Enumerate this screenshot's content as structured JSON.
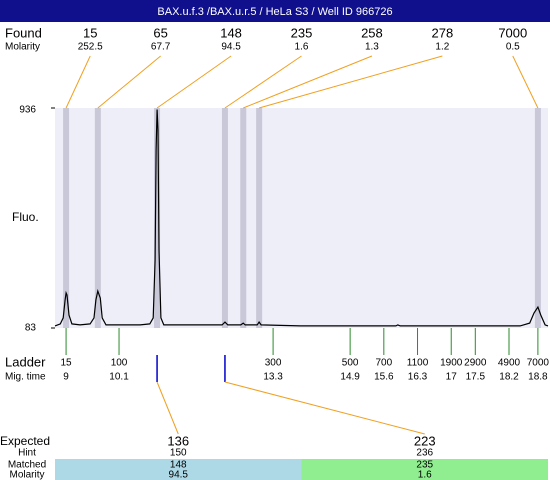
{
  "chart_data": {
    "type": "electropherogram",
    "title": "BAX.u.f.3 /BAX.u.r.5 / HeLa S3 / Well ID 966726",
    "ylabel": "Fluo.",
    "ylim": [
      83,
      936
    ],
    "yticks": [
      83,
      936
    ],
    "xlim": [
      8.77,
      19.01
    ],
    "trace_color": "#000000",
    "x": [
      8.77,
      8.88,
      8.94,
      8.98,
      9.0,
      9.02,
      9.06,
      9.12,
      9.29,
      9.5,
      9.58,
      9.62,
      9.66,
      9.71,
      9.75,
      9.83,
      10.54,
      10.74,
      10.81,
      10.85,
      10.87,
      10.89,
      10.91,
      10.93,
      10.97,
      11.03,
      12.24,
      12.3,
      12.36,
      12.63,
      12.68,
      12.72,
      12.97,
      13.01,
      13.05,
      13.86,
      15.85,
      15.89,
      15.94,
      18.43,
      18.63,
      18.72,
      18.8,
      18.86,
      18.95,
      19.01
    ],
    "values": [
      91,
      99,
      122,
      192,
      219,
      211,
      133,
      99,
      95,
      99,
      122,
      192,
      226,
      199,
      122,
      95,
      95,
      99,
      122,
      347,
      773,
      930,
      851,
      385,
      122,
      95,
      95,
      106,
      95,
      95,
      102,
      95,
      95,
      106,
      95,
      91,
      91,
      95,
      91,
      91,
      102,
      141,
      164,
      133,
      95,
      91
    ],
    "found": {
      "label": "Found",
      "molarity_label": "Molarity",
      "peaks": [
        {
          "size": 15,
          "molarity": 252.5,
          "time": 9.0
        },
        {
          "size": 65,
          "molarity": 67.7,
          "time": 9.66
        },
        {
          "size": 148,
          "molarity": 94.5,
          "time": 10.89
        },
        {
          "size": 235,
          "molarity": 1.6,
          "time": 12.3
        },
        {
          "size": 258,
          "molarity": 1.3,
          "time": 12.68
        },
        {
          "size": 278,
          "molarity": 1.2,
          "time": 13.01
        },
        {
          "size": 7000,
          "molarity": 0.5,
          "time": 18.8
        }
      ]
    },
    "ladder": {
      "label": "Ladder",
      "time_label": "Mig. time",
      "sizes": [
        15,
        100,
        300,
        500,
        700,
        1100,
        1900,
        2900,
        4900,
        7000
      ],
      "times": [
        9,
        10.1,
        13.3,
        14.9,
        15.6,
        16.3,
        17,
        17.5,
        18.2,
        18.8
      ]
    },
    "expected": {
      "label": "Expected",
      "hint_label": "Hint",
      "matched_label": "Matched",
      "molarity_label": "Molarity",
      "items": [
        {
          "size": 136,
          "hint": 150,
          "matched": 148,
          "molarity": 94.5,
          "color": "#add8e6"
        },
        {
          "size": 223,
          "hint": 236,
          "matched": 235,
          "molarity": 1.6,
          "color": "#90ee90"
        }
      ]
    }
  }
}
